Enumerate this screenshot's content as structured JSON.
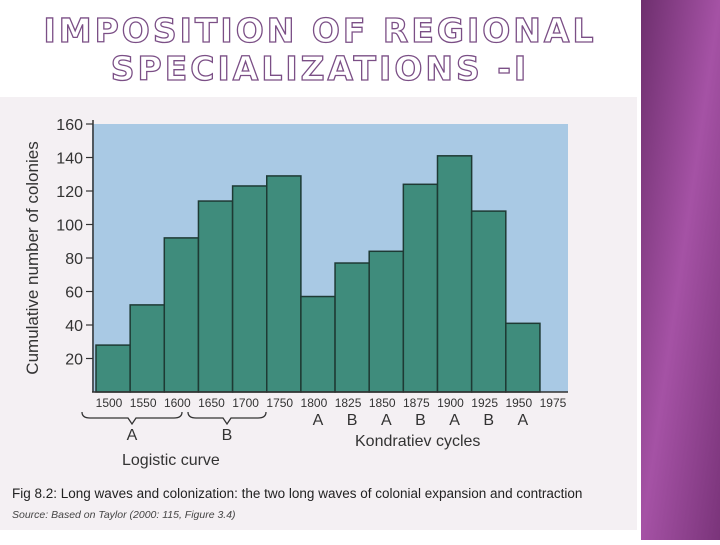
{
  "slide_title": [
    "IMPOSITION OF REGIONAL",
    "SPECIALIZATIONS -I"
  ],
  "chart_data": {
    "type": "histogram",
    "ylabel": "Cumulative number of colonies",
    "bins": [
      1500,
      1550,
      1600,
      1650,
      1700,
      1750,
      1800,
      1825,
      1850,
      1875,
      1900,
      1925,
      1950,
      1975
    ],
    "values": [
      28,
      52,
      92,
      114,
      123,
      129,
      57,
      77,
      84,
      124,
      141,
      108,
      41
    ],
    "color": "#3f8c7c",
    "ylim": [
      0,
      160
    ],
    "yticks": [
      20,
      40,
      60,
      80,
      100,
      120,
      140,
      160
    ],
    "logistic": {
      "phases": [
        "A",
        "B"
      ],
      "label": "Logistic curve"
    },
    "kondratiev": {
      "phases": [
        "A",
        "B",
        "A",
        "B",
        "A",
        "B",
        "A"
      ],
      "label": "Kondratiev cycles"
    },
    "caption": "Fig 8.2: Long waves and colonization: the two long waves of colonial expansion and contraction",
    "source": "Source: Based on Taylor (2000: 115, Figure 3.4)"
  }
}
